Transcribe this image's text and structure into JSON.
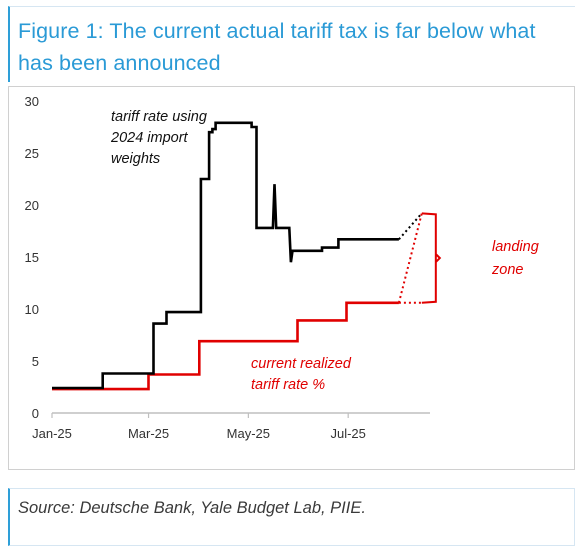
{
  "header": {
    "title": "Figure 1: The current actual tariff tax is far below what has been announced"
  },
  "footer": {
    "source": "Source: Deutsche Bank, Yale Budget Lab, PIIE."
  },
  "chart_data": {
    "type": "line",
    "title": "",
    "xlabel": "",
    "ylabel": "",
    "ylim": [
      0,
      30
    ],
    "yticks": [
      "0",
      "5",
      "10",
      "15",
      "20",
      "25",
      "30"
    ],
    "x_tick_labels": [
      "Jan-25",
      "Mar-25",
      "May-25",
      "Jul-25"
    ],
    "x_tick_dates": [
      "2025-01-01",
      "2025-03-01",
      "2025-05-01",
      "2025-07-01"
    ],
    "xlim": [
      "2025-01-01",
      "2025-08-20"
    ],
    "grid": false,
    "colors": {
      "tariff_announced": "#000000",
      "tariff_realized": "#e00000",
      "axis": "#bfbfbf",
      "tick_text": "#333333"
    },
    "annotations": {
      "announced_label": [
        "tariff rate using",
        "2024 import",
        "weights"
      ],
      "realized_label": [
        "current realized",
        "tariff rate %"
      ],
      "landing_zone_label": [
        "landing",
        "zone"
      ]
    },
    "series": [
      {
        "values": [
          {
            "x": "2025-01-01",
            "y": 2.4
          },
          {
            "x": "2025-02-01",
            "y": 2.4
          },
          {
            "x": "2025-02-01",
            "y": 3.8
          },
          {
            "x": "2025-03-04",
            "y": 3.8
          },
          {
            "x": "2025-03-04",
            "y": 8.6
          },
          {
            "x": "2025-03-12",
            "y": 8.6
          },
          {
            "x": "2025-03-12",
            "y": 9.7
          },
          {
            "x": "2025-04-02",
            "y": 9.7
          },
          {
            "x": "2025-04-02",
            "y": 22.5
          },
          {
            "x": "2025-04-07",
            "y": 22.5
          },
          {
            "x": "2025-04-07",
            "y": 27.0
          },
          {
            "x": "2025-04-09",
            "y": 27.0
          },
          {
            "x": "2025-04-09",
            "y": 27.3
          },
          {
            "x": "2025-04-11",
            "y": 27.3
          },
          {
            "x": "2025-04-11",
            "y": 27.9
          },
          {
            "x": "2025-05-03",
            "y": 27.9
          },
          {
            "x": "2025-05-03",
            "y": 27.5
          },
          {
            "x": "2025-05-06",
            "y": 27.5
          },
          {
            "x": "2025-05-06",
            "y": 17.8
          },
          {
            "x": "2025-05-16",
            "y": 17.8
          },
          {
            "x": "2025-05-17",
            "y": 22.0
          },
          {
            "x": "2025-05-18",
            "y": 17.8
          },
          {
            "x": "2025-05-26",
            "y": 17.8
          },
          {
            "x": "2025-05-27",
            "y": 14.5
          },
          {
            "x": "2025-05-28",
            "y": 15.6
          },
          {
            "x": "2025-06-15",
            "y": 15.6
          },
          {
            "x": "2025-06-15",
            "y": 15.9
          },
          {
            "x": "2025-06-25",
            "y": 15.9
          },
          {
            "x": "2025-06-25",
            "y": 16.7
          },
          {
            "x": "2025-08-01",
            "y": 16.7
          }
        ],
        "projection": [
          {
            "x": "2025-08-01",
            "y": 16.7
          },
          {
            "x": "2025-08-15",
            "y": 19.2
          }
        ]
      },
      {
        "values": [
          {
            "x": "2025-01-01",
            "y": 2.3
          },
          {
            "x": "2025-03-01",
            "y": 2.3
          },
          {
            "x": "2025-03-01",
            "y": 3.7
          },
          {
            "x": "2025-04-01",
            "y": 3.7
          },
          {
            "x": "2025-04-01",
            "y": 6.9
          },
          {
            "x": "2025-05-31",
            "y": 6.9
          },
          {
            "x": "2025-05-31",
            "y": 8.9
          },
          {
            "x": "2025-06-30",
            "y": 8.9
          },
          {
            "x": "2025-06-30",
            "y": 10.6
          },
          {
            "x": "2025-08-01",
            "y": 10.6
          }
        ],
        "projection": [
          {
            "x": "2025-08-01",
            "y": 10.6
          },
          {
            "x": "2025-08-15",
            "y": 19.2
          },
          {
            "x": "2025-08-01",
            "y": 10.6
          },
          {
            "x": "2025-08-15",
            "y": 10.6
          }
        ]
      }
    ],
    "landing_zone": {
      "x": "2025-08-15",
      "y_low": 10.6,
      "y_high": 19.2
    }
  }
}
